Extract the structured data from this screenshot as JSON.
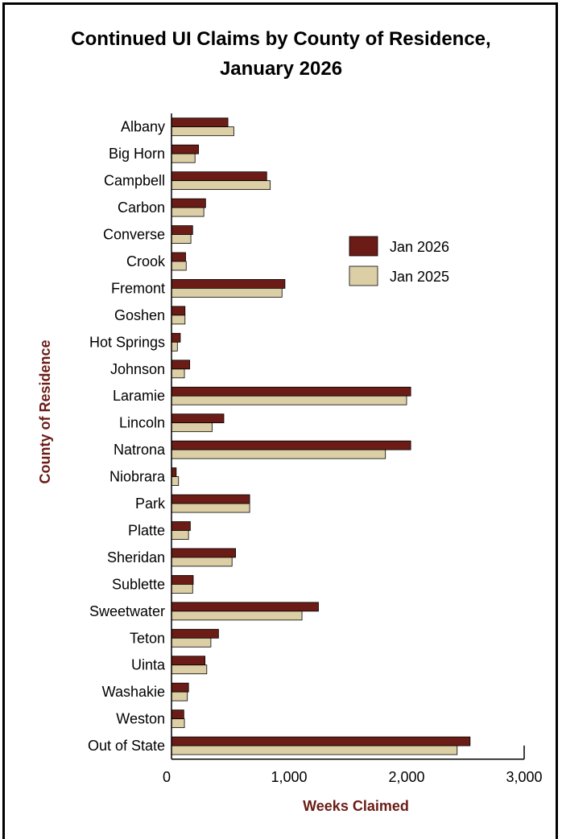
{
  "chart_data": {
    "type": "bar",
    "orientation": "horizontal",
    "title_line1": "Continued UI Claims by County of Residence,",
    "title_line2": "January 2026",
    "xlabel": "Weeks Claimed",
    "ylabel": "County of Residence",
    "xlim": [
      0,
      3000
    ],
    "xticks": [
      0,
      1000,
      2000,
      3000
    ],
    "xtick_labels": [
      "0",
      "1,000",
      "2,000",
      "3,000"
    ],
    "categories": [
      "Albany",
      "Big Horn",
      "Campbell",
      "Carbon",
      "Converse",
      "Crook",
      "Fremont",
      "Goshen",
      "Hot Springs",
      "Johnson",
      "Laramie",
      "Lincoln",
      "Natrona",
      "Niobrara",
      "Park",
      "Platte",
      "Sheridan",
      "Sublette",
      "Sweetwater",
      "Teton",
      "Uinta",
      "Washakie",
      "Weston",
      "Out of State"
    ],
    "series": [
      {
        "name": "Jan 2026",
        "color": "#6b1c16",
        "values": [
          480,
          230,
          810,
          290,
          180,
          120,
          965,
          115,
          75,
          155,
          2035,
          445,
          2035,
          40,
          665,
          160,
          545,
          185,
          1250,
          400,
          285,
          145,
          105,
          2540
        ]
      },
      {
        "name": "Jan 2025",
        "color": "#dccfa6",
        "values": [
          530,
          200,
          840,
          275,
          165,
          125,
          940,
          115,
          50,
          110,
          2000,
          345,
          1820,
          60,
          665,
          145,
          515,
          180,
          1110,
          335,
          300,
          135,
          110,
          2430
        ]
      }
    ],
    "legend_position": "right"
  }
}
